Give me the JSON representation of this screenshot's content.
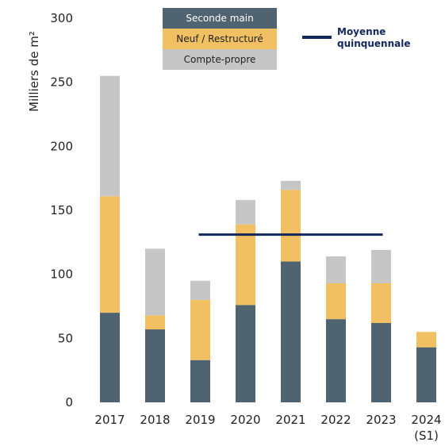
{
  "chart_data": {
    "type": "stacked_bar",
    "y_label": "Milliers de m²",
    "categories": [
      "2017",
      "2018",
      "2019",
      "2020",
      "2021",
      "2022",
      "2023",
      "2024 (S1)"
    ],
    "series": [
      {
        "name": "Seconde main",
        "color": "#4f6470",
        "values": [
          70,
          57,
          33,
          76,
          110,
          65,
          62,
          43
        ]
      },
      {
        "name": "Neuf / Restructuré",
        "color": "#f1c062",
        "values": [
          91,
          11,
          47,
          63,
          56,
          28,
          31,
          12
        ]
      },
      {
        "name": "Compte-propre",
        "color": "#c6c6c6",
        "values": [
          94,
          52,
          15,
          19,
          7,
          21,
          26,
          0
        ]
      }
    ],
    "reference_line": {
      "name": "Moyenne quinquennale",
      "value": 131,
      "color": "#13285a",
      "x_start": "2019",
      "x_end": "2023"
    },
    "ylim": [
      0,
      300
    ],
    "yticks": [
      0,
      50,
      100,
      150,
      200,
      250,
      300
    ],
    "grid": false
  }
}
